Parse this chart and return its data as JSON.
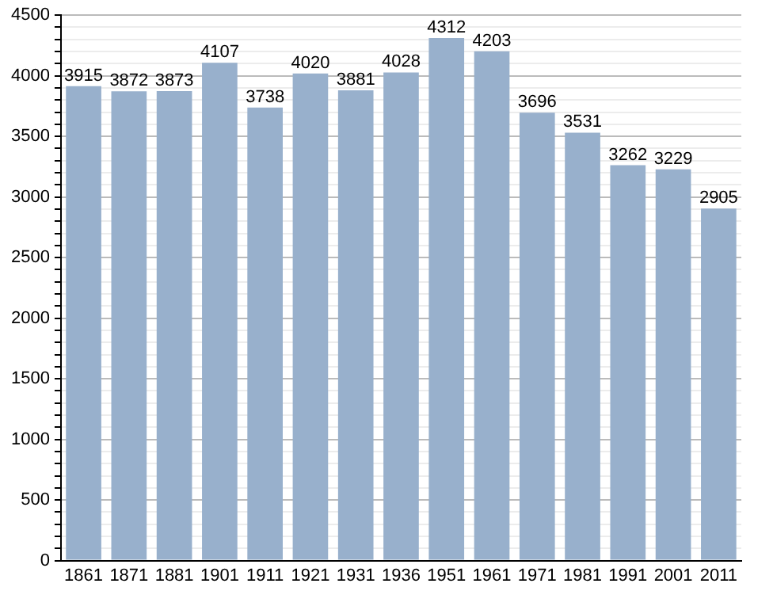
{
  "chart_data": {
    "type": "bar",
    "categories": [
      "1861",
      "1871",
      "1881",
      "1901",
      "1911",
      "1921",
      "1931",
      "1936",
      "1951",
      "1961",
      "1971",
      "1981",
      "1991",
      "2001",
      "2011"
    ],
    "values": [
      3915,
      3872,
      3873,
      4107,
      3738,
      4020,
      3881,
      4028,
      4312,
      4203,
      3696,
      3531,
      3262,
      3229,
      2905
    ],
    "color": "#98b0cc",
    "ylim": [
      0,
      4500
    ],
    "yticks": [
      0,
      {
        "value": 100,
        "label": null
      },
      {
        "value": 200,
        "label": null
      },
      {
        "value": 300,
        "label": null
      },
      {
        "value": 400,
        "label": null
      },
      500,
      {
        "value": 600,
        "label": null
      },
      {
        "value": 700,
        "label": null
      },
      {
        "value": 800,
        "label": null
      },
      {
        "value": 900,
        "label": null
      },
      1000,
      {
        "value": 1100,
        "label": null
      },
      {
        "value": 1200,
        "label": null
      },
      {
        "value": 1300,
        "label": null
      },
      {
        "value": 1400,
        "label": null
      },
      1500,
      {
        "value": 1600,
        "label": null
      },
      {
        "value": 1700,
        "label": null
      },
      {
        "value": 1800,
        "label": null
      },
      {
        "value": 1900,
        "label": null
      },
      2000,
      {
        "value": 2100,
        "label": null
      },
      {
        "value": 2200,
        "label": null
      },
      {
        "value": 2300,
        "label": null
      },
      {
        "value": 2400,
        "label": null
      },
      2500,
      {
        "value": 2600,
        "label": null
      },
      {
        "value": 2700,
        "label": null
      },
      {
        "value": 2800,
        "label": null
      },
      {
        "value": 2900,
        "label": null
      },
      3000,
      {
        "value": 3100,
        "label": null
      },
      {
        "value": 3200,
        "label": null
      },
      {
        "value": 3300,
        "label": null
      },
      {
        "value": 3400,
        "label": null
      },
      3500,
      {
        "value": 3600,
        "label": null
      },
      {
        "value": 3700,
        "label": null
      },
      {
        "value": 3800,
        "label": null
      },
      {
        "value": 3900,
        "label": null
      },
      4000,
      {
        "value": 4100,
        "label": null
      },
      {
        "value": 4200,
        "label": null
      },
      {
        "value": 4300,
        "label": null
      },
      {
        "value": 4400,
        "label": null
      },
      4500
    ],
    "grid": "y",
    "data_labels": true
  }
}
